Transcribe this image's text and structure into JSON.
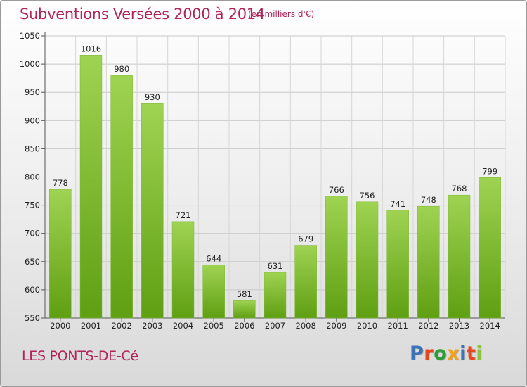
{
  "header": {
    "title": "Subventions Versées 2000 à 2014",
    "subtitle": "(en milliers d'€)"
  },
  "footer": {
    "city": "LES PONTS-DE-Cé",
    "logo": "Proxiti",
    "logo_colors": [
      "#3a73b8",
      "#e8471e",
      "#2f9c3a",
      "#f2a11d",
      "#3a73b8",
      "#e8471e",
      "#8cc63f"
    ]
  },
  "chart_data": {
    "type": "bar",
    "categories": [
      "2000",
      "2001",
      "2002",
      "2003",
      "2004",
      "2005",
      "2006",
      "2007",
      "2008",
      "2009",
      "2010",
      "2011",
      "2012",
      "2013",
      "2014"
    ],
    "values": [
      778,
      1016,
      980,
      930,
      721,
      644,
      581,
      631,
      679,
      766,
      756,
      741,
      748,
      768,
      799
    ],
    "title": "Subventions Versées 2000 à 2014",
    "subtitle": "(en milliers d'€)",
    "xlabel": "",
    "ylabel": "",
    "ylim": [
      550,
      1050
    ],
    "yticks": [
      550,
      600,
      650,
      700,
      750,
      800,
      850,
      900,
      950,
      1000,
      1050
    ],
    "grid": true,
    "bar_color_top": "#9fd352",
    "bar_color_bottom": "#5f9f12"
  }
}
